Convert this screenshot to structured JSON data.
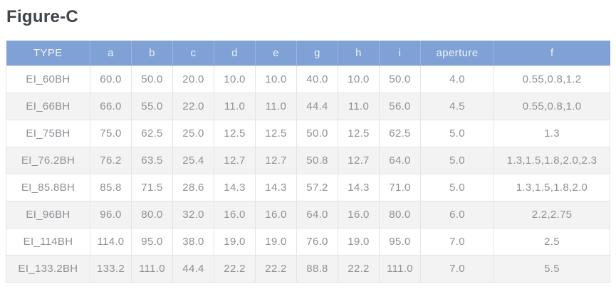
{
  "page": {
    "title": "Figure-C"
  },
  "chart_data": {
    "type": "table",
    "title": "Figure-C",
    "columns": [
      "TYPE",
      "a",
      "b",
      "c",
      "d",
      "e",
      "g",
      "h",
      "i",
      "aperture",
      "f"
    ],
    "rows": [
      [
        "EI_60BH",
        "60.0",
        "50.0",
        "20.0",
        "10.0",
        "10.0",
        "40.0",
        "10.0",
        "50.0",
        "4.0",
        "0.55,0.8,1.2"
      ],
      [
        "EI_66BH",
        "66.0",
        "55.0",
        "22.0",
        "11.0",
        "11.0",
        "44.4",
        "11.0",
        "56.0",
        "4.5",
        "0.55,0.8,1.0"
      ],
      [
        "EI_75BH",
        "75.0",
        "62.5",
        "25.0",
        "12.5",
        "12.5",
        "50.0",
        "12.5",
        "62.5",
        "5.0",
        "1.3"
      ],
      [
        "EI_76.2BH",
        "76.2",
        "63.5",
        "25.4",
        "12.7",
        "12.7",
        "50.8",
        "12.7",
        "64.0",
        "5.0",
        "1.3,1.5,1.8,2.0,2.3"
      ],
      [
        "EI_85.8BH",
        "85.8",
        "71.5",
        "28.6",
        "14.3",
        "14.3",
        "57.2",
        "14.3",
        "71.0",
        "5.0",
        "1.3,1.5,1.8,2.0"
      ],
      [
        "EI_96BH",
        "96.0",
        "80.0",
        "32.0",
        "16.0",
        "16.0",
        "64.0",
        "16.0",
        "80.0",
        "6.0",
        "2.2,2.75"
      ],
      [
        "EI_114BH",
        "114.0",
        "95.0",
        "38.0",
        "19.0",
        "19.0",
        "76.0",
        "19.0",
        "95.0",
        "7.0",
        "2.5"
      ],
      [
        "EI_133.2BH",
        "133.2",
        "111.0",
        "44.4",
        "22.2",
        "22.2",
        "88.8",
        "22.2",
        "111.0",
        "7.0",
        "5.5"
      ]
    ]
  },
  "colors": {
    "header_bg": "#7fa1d5",
    "header_text": "#eef3fa",
    "header_divider": "#9cb5dd",
    "row_alt_bg": "#f3f3f3",
    "body_text": "#8d9196",
    "cell_border": "#e2e4e6",
    "title_text": "#3f4449"
  }
}
